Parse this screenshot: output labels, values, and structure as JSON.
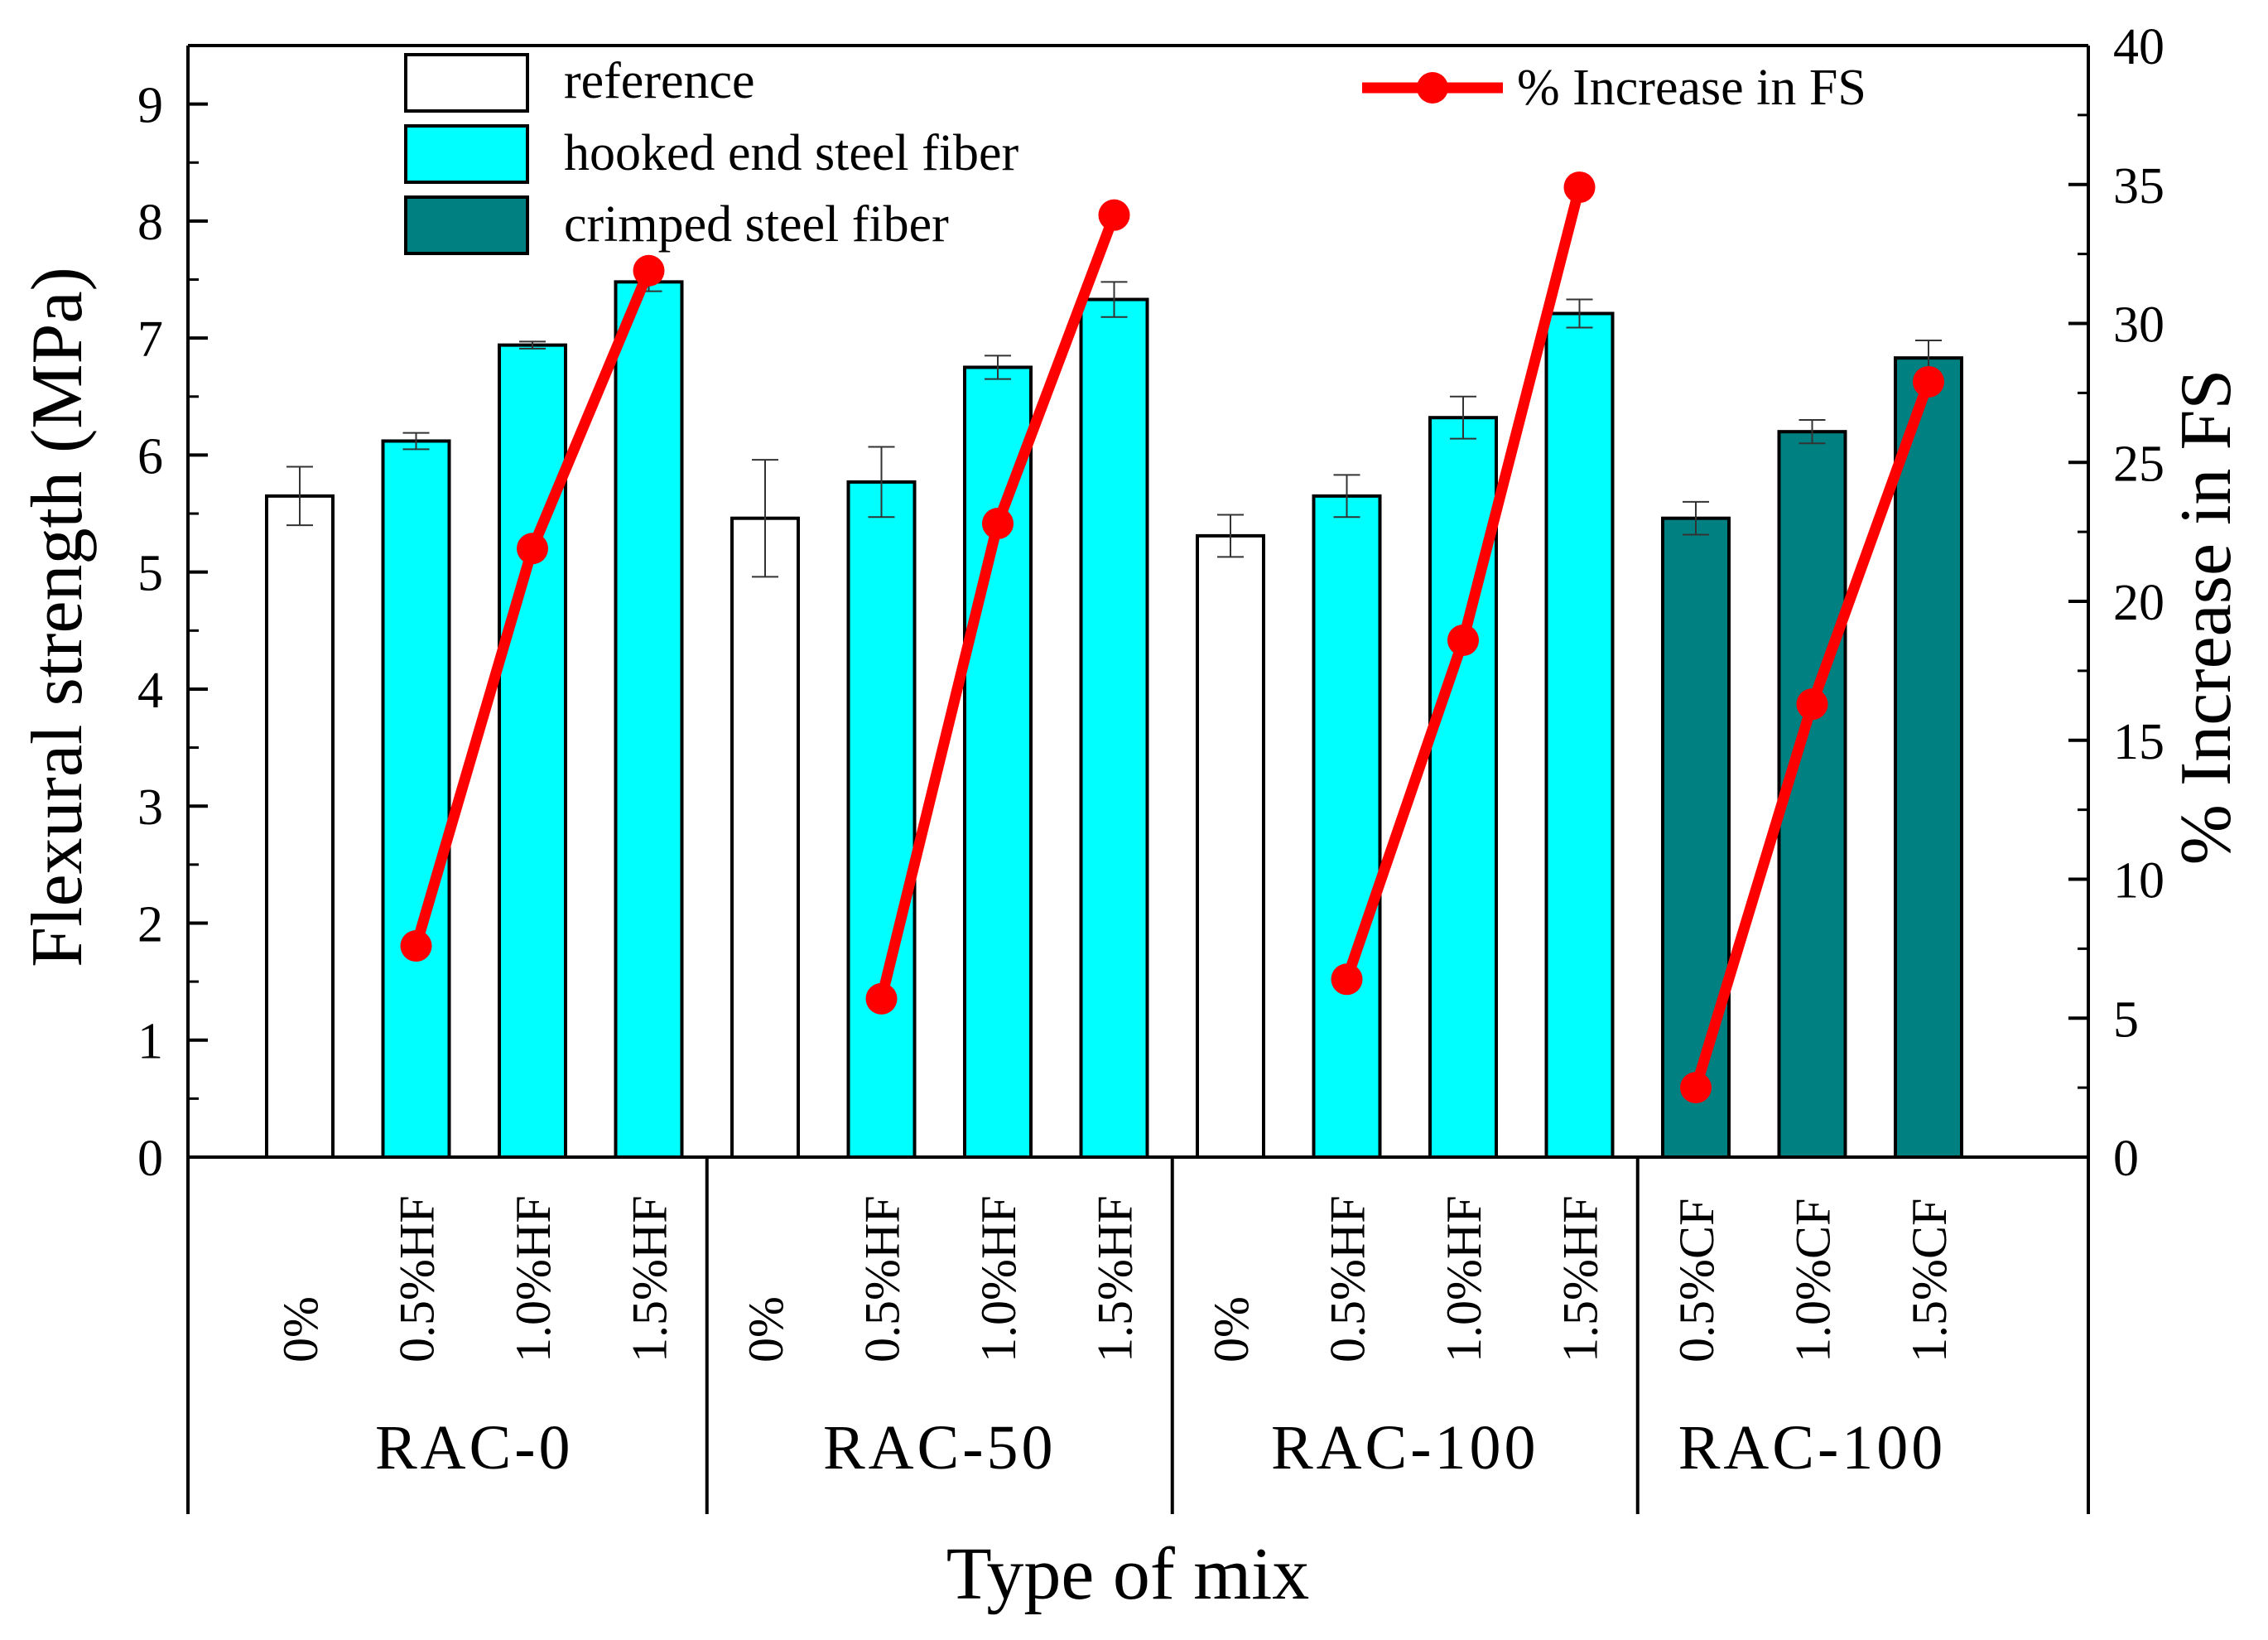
{
  "chart_data": {
    "type": "bar+line",
    "x_title": "Type of mix",
    "y_left_label": "Flexural strength (MPa)",
    "y_right_label": "% Increase in FS",
    "y_left_range": [
      0,
      9.5
    ],
    "y_right_range": [
      0,
      40
    ],
    "y_left_ticks": [
      "0",
      "1",
      "2",
      "3",
      "4",
      "5",
      "6",
      "7",
      "8",
      "9"
    ],
    "y_right_ticks": [
      "0",
      "5",
      "10",
      "15",
      "20",
      "25",
      "30",
      "35",
      "40"
    ],
    "legend": {
      "reference": "reference",
      "hooked": "hooked end steel fiber",
      "crimped": "crimped steel fiber",
      "line": "% Increase in FS"
    },
    "colors": {
      "reference": "#ffffff",
      "hooked": "#00ffff",
      "crimped": "#008080",
      "line": "#ff0000"
    },
    "groups": [
      {
        "label": "RAC-0",
        "start": 0,
        "count": 4
      },
      {
        "label": "RAC-50",
        "start": 4,
        "count": 4
      },
      {
        "label": "RAC-100",
        "start": 8,
        "count": 4
      },
      {
        "label": "RAC-100",
        "start": 12,
        "count": 3
      }
    ],
    "bars": [
      {
        "category": "0%",
        "type": "reference",
        "value": 5.65,
        "error": 0.25
      },
      {
        "category": "0.5%HF",
        "type": "hooked",
        "value": 6.12,
        "error": 0.07
      },
      {
        "category": "1.0%HF",
        "type": "hooked",
        "value": 6.94,
        "error": 0.03
      },
      {
        "category": "1.5%HF",
        "type": "hooked",
        "value": 7.48,
        "error": 0.08
      },
      {
        "category": "0%",
        "type": "reference",
        "value": 5.46,
        "error": 0.5
      },
      {
        "category": "0.5%HF",
        "type": "hooked",
        "value": 5.77,
        "error": 0.3
      },
      {
        "category": "1.0%HF",
        "type": "hooked",
        "value": 6.75,
        "error": 0.1
      },
      {
        "category": "1.5%HF",
        "type": "hooked",
        "value": 7.33,
        "error": 0.15
      },
      {
        "category": "0%",
        "type": "reference",
        "value": 5.31,
        "error": 0.18
      },
      {
        "category": "0.5%HF",
        "type": "hooked",
        "value": 5.65,
        "error": 0.18
      },
      {
        "category": "1.0%HF",
        "type": "hooked",
        "value": 6.32,
        "error": 0.18
      },
      {
        "category": "1.5%HF",
        "type": "hooked",
        "value": 7.21,
        "error": 0.12
      },
      {
        "category": "0.5%CF",
        "type": "crimped",
        "value": 5.46,
        "error": 0.14
      },
      {
        "category": "1.0%CF",
        "type": "crimped",
        "value": 6.2,
        "error": 0.1
      },
      {
        "category": "1.5%CF",
        "type": "crimped",
        "value": 6.83,
        "error": 0.15
      }
    ],
    "increase_series": [
      [
        {
          "bar": 1,
          "value": 7.6
        },
        {
          "bar": 2,
          "value": 21.9
        },
        {
          "bar": 3,
          "value": 31.9
        }
      ],
      [
        {
          "bar": 5,
          "value": 5.7
        },
        {
          "bar": 6,
          "value": 22.8
        },
        {
          "bar": 7,
          "value": 33.9
        }
      ],
      [
        {
          "bar": 9,
          "value": 6.4
        },
        {
          "bar": 10,
          "value": 18.6
        },
        {
          "bar": 11,
          "value": 34.9
        }
      ],
      [
        {
          "bar": 12,
          "value": 2.5
        },
        {
          "bar": 13,
          "value": 16.3
        },
        {
          "bar": 14,
          "value": 27.9
        }
      ]
    ]
  }
}
